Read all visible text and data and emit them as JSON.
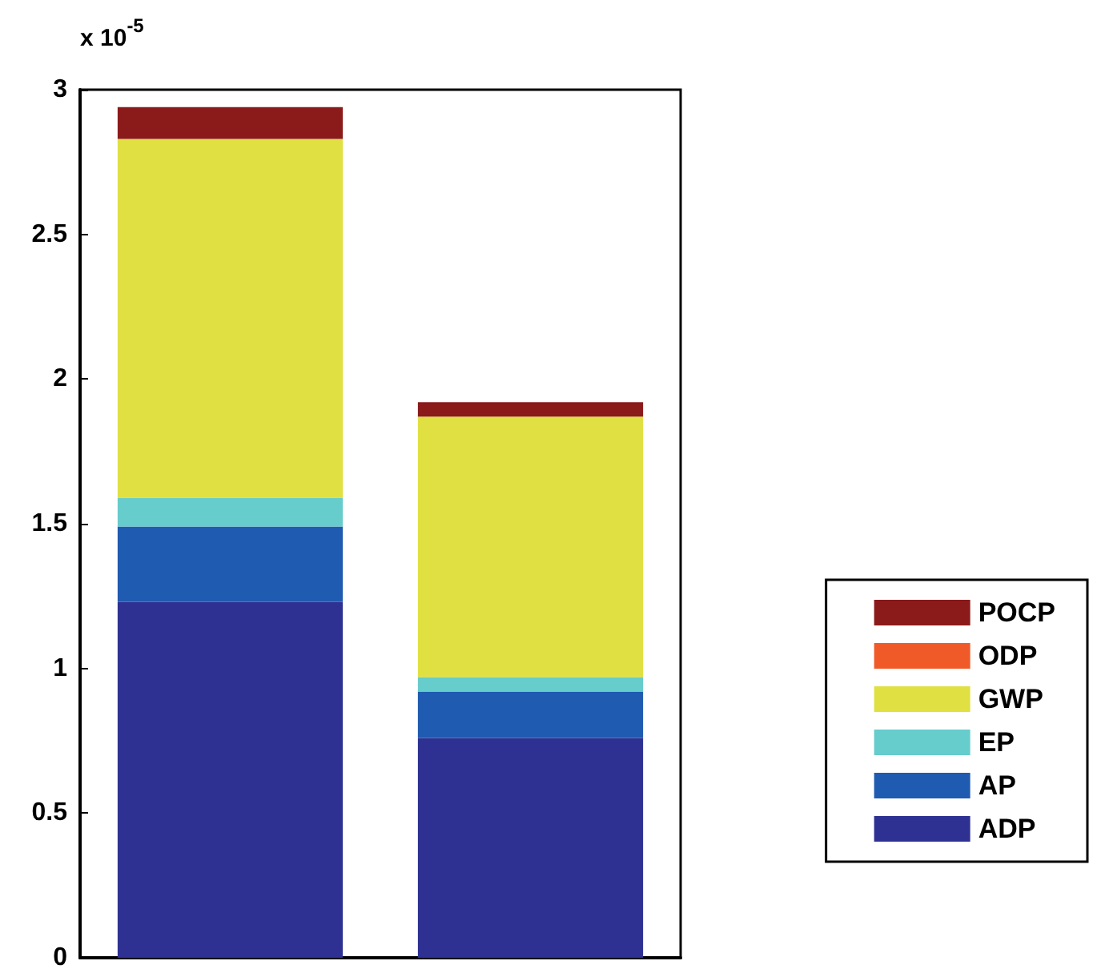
{
  "chart_data": {
    "type": "bar",
    "stacked": true,
    "categories": [
      null,
      null
    ],
    "series": [
      {
        "name": "ADP",
        "color": "#2e3192",
        "values": [
          1.23,
          0.76
        ]
      },
      {
        "name": "AP",
        "color": "#1f5bb0",
        "values": [
          0.26,
          0.16
        ]
      },
      {
        "name": "EP",
        "color": "#66cccc",
        "values": [
          0.1,
          0.05
        ]
      },
      {
        "name": "GWP",
        "color": "#e0e043",
        "values": [
          1.24,
          0.9
        ]
      },
      {
        "name": "ODP",
        "color": "#f05a28",
        "values": [
          null,
          null
        ]
      },
      {
        "name": "POCP",
        "color": "#8b1a1a",
        "values": [
          0.11,
          0.05
        ]
      }
    ],
    "ylim": [
      0,
      3
    ],
    "yticks": [
      0,
      0.5,
      1,
      1.5,
      2,
      2.5,
      3
    ],
    "annotations": [
      "x 10$^{-5}$"
    ],
    "legend": "right",
    "grid": false
  }
}
